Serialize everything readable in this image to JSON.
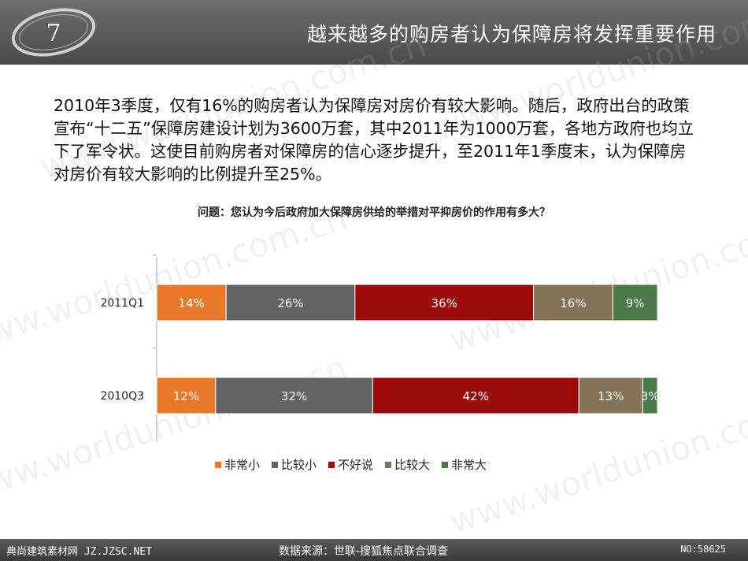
{
  "header": {
    "title": "越来越多的购房者认为保障房将发挥重要作用",
    "logo_glyph": "7"
  },
  "body_text": "2010年3季度，仅有16%的购房者认为保障房对房价有较大影响。随后，政府出台的政策宣布“十二五”保障房建设计划为3600万套，其中2011年为1000万套，各地方政府也均立下了军令状。这使目前购房者对保障房的信心逐步提升，至2011年1季度末，认为保障房对房价有较大影响的比例提升至25%。",
  "watermark_text": "www.worldunion.com.cn",
  "chart_data": {
    "type": "bar",
    "orientation": "horizontal-stacked-100",
    "title": "问题：您认为今后政府加大保障房供给的举措对平抑房价的作用有多大？",
    "categories": [
      "2011Q1",
      "2010Q3"
    ],
    "series": [
      {
        "name": "非常小",
        "color": "#e8792a",
        "values": [
          14,
          12
        ]
      },
      {
        "name": "比较小",
        "color": "#636363",
        "values": [
          26,
          32
        ]
      },
      {
        "name": "不好说",
        "color": "#9b0b0b",
        "values": [
          36,
          42
        ]
      },
      {
        "name": "比较大",
        "color": "#847358",
        "values": [
          16,
          13
        ]
      },
      {
        "name": "非常大",
        "color": "#4a7a4a",
        "values": [
          9,
          3
        ]
      }
    ],
    "value_suffix": "%",
    "legend_position": "bottom",
    "grid": false
  },
  "footer": {
    "left": "典尚建筑素材网 JZ.JZSC.NET",
    "center": "数据来源：世联-搜狐焦点联合调查",
    "right": "NO:58625"
  }
}
